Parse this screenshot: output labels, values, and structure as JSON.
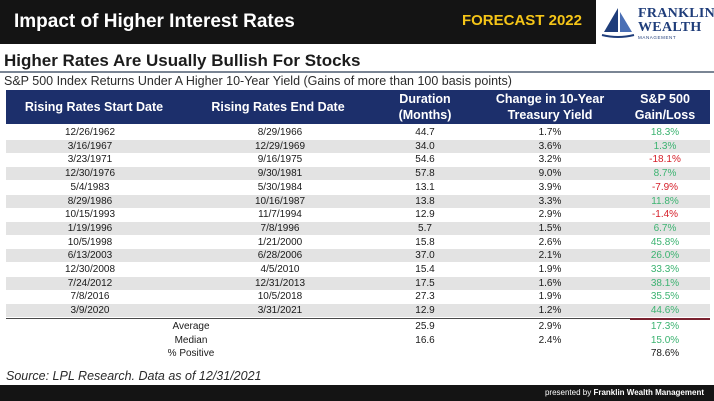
{
  "header": {
    "title": "Impact of Higher Interest Rates",
    "forecast": "FORECAST 2022",
    "logo_line1": "FRANKLIN",
    "logo_line2": "WEALTH",
    "logo_line3": "MANAGEMENT",
    "logo_icon": "sailboat-icon"
  },
  "slide": {
    "heading": "Higher Rates Are Usually Bullish For Stocks",
    "subheading": "S&P 500 Index Returns Under A Higher 10-Year Yield (Gains of more than 100 basis points)"
  },
  "table": {
    "columns": [
      "Rising Rates Start Date",
      "Rising Rates End Date",
      "Duration\n(Months)",
      "Change in 10-Year\nTreasury Yield",
      "S&P 500\nGain/Loss"
    ],
    "rows": [
      [
        "12/26/1962",
        "8/29/1966",
        "44.7",
        "1.7%",
        "18.3%"
      ],
      [
        "3/16/1967",
        "12/29/1969",
        "34.0",
        "3.6%",
        "1.3%"
      ],
      [
        "3/23/1971",
        "9/16/1975",
        "54.6",
        "3.2%",
        "-18.1%"
      ],
      [
        "12/30/1976",
        "9/30/1981",
        "57.8",
        "9.0%",
        "8.7%"
      ],
      [
        "5/4/1983",
        "5/30/1984",
        "13.1",
        "3.9%",
        "-7.9%"
      ],
      [
        "8/29/1986",
        "10/16/1987",
        "13.8",
        "3.3%",
        "11.8%"
      ],
      [
        "10/15/1993",
        "11/7/1994",
        "12.9",
        "2.9%",
        "-1.4%"
      ],
      [
        "1/19/1996",
        "7/8/1996",
        "5.7",
        "1.5%",
        "6.7%"
      ],
      [
        "10/5/1998",
        "1/21/2000",
        "15.8",
        "2.6%",
        "45.8%"
      ],
      [
        "6/13/2003",
        "6/28/2006",
        "37.0",
        "2.1%",
        "26.0%"
      ],
      [
        "12/30/2008",
        "4/5/2010",
        "15.4",
        "1.9%",
        "33.3%"
      ],
      [
        "7/24/2012",
        "12/31/2013",
        "17.5",
        "1.6%",
        "38.1%"
      ],
      [
        "7/8/2016",
        "10/5/2018",
        "27.3",
        "1.9%",
        "35.5%"
      ],
      [
        "3/9/2020",
        "3/31/2021",
        "12.9",
        "1.2%",
        "44.6%"
      ]
    ],
    "summary": [
      {
        "label": "Average",
        "duration": "25.9",
        "change": "2.9%",
        "gain": "17.3%"
      },
      {
        "label": "Median",
        "duration": "16.6",
        "change": "2.4%",
        "gain": "15.0%"
      },
      {
        "label": "% Positive",
        "duration": "",
        "change": "",
        "gain": "78.6%"
      }
    ]
  },
  "footer": {
    "source": "Source: LPL Research. Data as of 12/31/2021",
    "presented_prefix": "presented by ",
    "presented_brand": "Franklin Wealth Management"
  },
  "colors": {
    "header_bg": "#141414",
    "forecast": "#f5c518",
    "table_header": "#1c2f6b",
    "positive": "#3cb371",
    "negative": "#d6202a",
    "row_shade": "#e3e3e3"
  }
}
